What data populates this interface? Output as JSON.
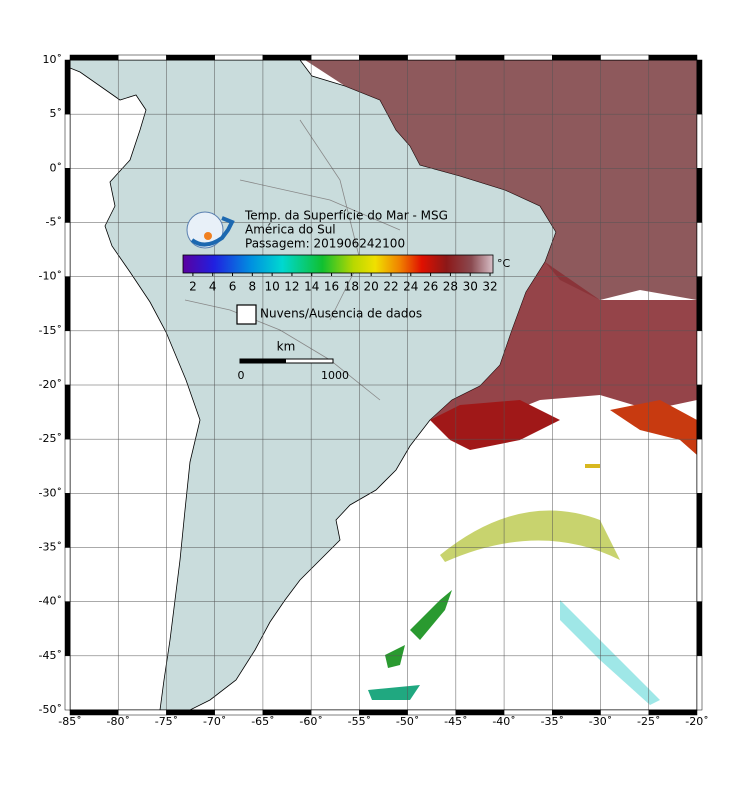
{
  "map": {
    "title_lines": [
      "Temp. da Superfície do Mar - MSG",
      "América do Sul",
      "Passagem: 201906242100"
    ],
    "lon_lim": [
      -85,
      -20
    ],
    "lat_lim": [
      -50,
      10
    ],
    "lon_ticks": [
      {
        "value": -85,
        "label": "-85˚"
      },
      {
        "value": -80,
        "label": "-80˚"
      },
      {
        "value": -75,
        "label": "-75˚"
      },
      {
        "value": -70,
        "label": "-70˚"
      },
      {
        "value": -65,
        "label": "-65˚"
      },
      {
        "value": -60,
        "label": "-60˚"
      },
      {
        "value": -55,
        "label": "-55˚"
      },
      {
        "value": -50,
        "label": "-50˚"
      },
      {
        "value": -45,
        "label": "-45˚"
      },
      {
        "value": -40,
        "label": "-40˚"
      },
      {
        "value": -35,
        "label": "-35˚"
      },
      {
        "value": -30,
        "label": "-30˚"
      },
      {
        "value": -25,
        "label": "-25˚"
      },
      {
        "value": -20,
        "label": "-20˚"
      }
    ],
    "lat_ticks": [
      {
        "value": 10,
        "label": "10˚"
      },
      {
        "value": 5,
        "label": "5˚"
      },
      {
        "value": 0,
        "label": "0˚"
      },
      {
        "value": -5,
        "label": "-5˚"
      },
      {
        "value": -10,
        "label": "-10˚"
      },
      {
        "value": -15,
        "label": "-15˚"
      },
      {
        "value": -20,
        "label": "-20˚"
      },
      {
        "value": -25,
        "label": "-25˚"
      },
      {
        "value": -30,
        "label": "-30˚"
      },
      {
        "value": -35,
        "label": "-35˚"
      },
      {
        "value": -40,
        "label": "-40˚"
      },
      {
        "value": -45,
        "label": "-45˚"
      },
      {
        "value": -50,
        "label": "-50˚"
      }
    ],
    "colorbar": {
      "lim": [
        1,
        32.3
      ],
      "ticks": [
        2,
        4,
        6,
        8,
        10,
        12,
        14,
        16,
        18,
        20,
        22,
        24,
        26,
        28,
        30,
        32
      ],
      "unit": "°C"
    },
    "legend": "Nuvens/Ausencia de dados",
    "scale_bar": {
      "unit": "km",
      "labels": [
        "0",
        "1000"
      ]
    }
  }
}
